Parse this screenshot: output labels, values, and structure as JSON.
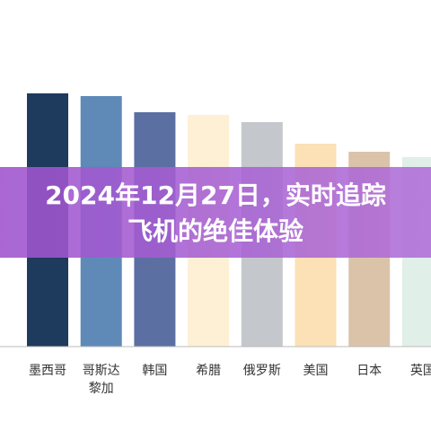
{
  "chart_data": {
    "type": "bar",
    "title": "2024年12月27日，实时追踪飞机的绝佳体验",
    "categories": [
      "墨西哥",
      "哥斯达黎加",
      "韩国",
      "希腊",
      "俄罗斯",
      "美国",
      "日本",
      "英国"
    ],
    "values": [
      282,
      279,
      261,
      258,
      250,
      226,
      217,
      211
    ],
    "colors": [
      "#1e3a5c",
      "#5f8ab8",
      "#5b6fa2",
      "#fdf0d4",
      "#c4c7cb",
      "#fbe1b5",
      "#dbc3aa",
      "#e0efe8"
    ],
    "ylim": [
      0,
      300
    ]
  }
}
